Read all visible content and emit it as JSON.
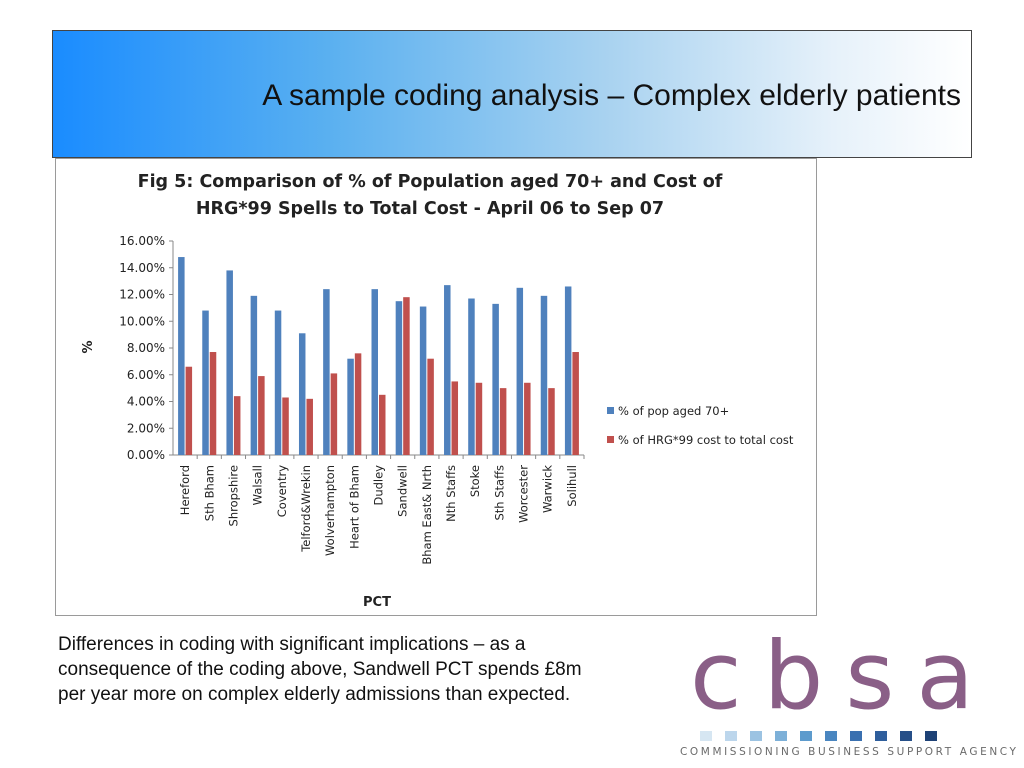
{
  "slide": {
    "title": "A sample coding analysis – Complex elderly patients",
    "caption_lines": [
      "Differences in coding with significant implications – as a",
      "consequence of the coding above, Sandwell PCT spends £8m",
      "per year more on complex elderly admissions than expected."
    ]
  },
  "logo": {
    "letters": "cbsa",
    "tagline": "COMMISSIONING BUSINESS SUPPORT AGENCY",
    "square_colors": [
      "#d6e6f2",
      "#bcd6ec",
      "#9cc3e2",
      "#7db0d8",
      "#5d9bcd",
      "#4a86c0",
      "#3a70b0",
      "#2f5e9c",
      "#264f88",
      "#1e4276"
    ]
  },
  "colors": {
    "series_blue": "#4f81bd",
    "series_red": "#c0504d"
  },
  "chart_data": {
    "type": "bar",
    "title_lines": [
      "Fig 5: Comparison of % of Population aged 70+ and Cost of",
      "HRG*99 Spells to Total Cost - April 06 to Sep 07"
    ],
    "xlabel": "PCT",
    "ylabel": "%",
    "ylim": [
      0,
      16
    ],
    "y_ticks": [
      "0.00%",
      "2.00%",
      "4.00%",
      "6.00%",
      "8.00%",
      "10.00%",
      "12.00%",
      "14.00%",
      "16.00%"
    ],
    "legend_position": "right",
    "grid": false,
    "categories": [
      "Hereford",
      "Sth Bham",
      "Shropshire",
      "Walsall",
      "Coventry",
      "Telford&Wrekin",
      "Wolverhampton",
      "Heart of Bham",
      "Dudley",
      "Sandwell",
      "Bham East& Nrth",
      "Nth Staffs",
      "Stoke",
      "Sth Staffs",
      "Worcester",
      "Warwick",
      "Solihull"
    ],
    "series": [
      {
        "name": "% of pop aged 70+",
        "color": "#4f81bd",
        "values": [
          14.8,
          10.8,
          13.8,
          11.9,
          10.8,
          9.1,
          12.4,
          7.2,
          12.4,
          11.5,
          11.1,
          12.7,
          11.7,
          11.3,
          12.5,
          11.9,
          12.6
        ]
      },
      {
        "name": "% of HRG*99 cost to total cost",
        "color": "#c0504d",
        "values": [
          6.6,
          7.7,
          4.4,
          5.9,
          4.3,
          4.2,
          6.1,
          7.6,
          4.5,
          11.8,
          7.2,
          5.5,
          5.4,
          5.0,
          5.4,
          5.0,
          7.7
        ]
      }
    ]
  }
}
